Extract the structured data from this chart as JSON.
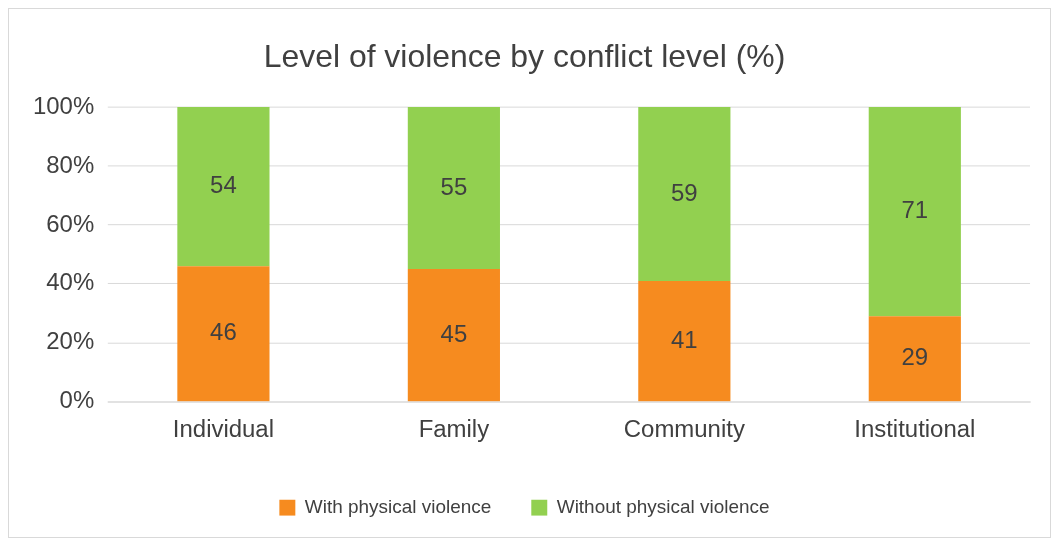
{
  "chart_data": {
    "type": "bar",
    "title": "Level of violence by conflict level (%)",
    "categories": [
      "Individual",
      "Family",
      "Community",
      "Institutional"
    ],
    "series": [
      {
        "name": "With physical violence",
        "color": "#f68b1f",
        "values": [
          46,
          45,
          41,
          29
        ]
      },
      {
        "name": "Without physical violence",
        "color": "#92d050",
        "values": [
          54,
          55,
          59,
          71
        ]
      }
    ],
    "stacked": true,
    "ylim": [
      0,
      100
    ],
    "yticks": [
      {
        "value": 0,
        "label": "0%"
      },
      {
        "value": 20,
        "label": "20%"
      },
      {
        "value": 40,
        "label": "40%"
      },
      {
        "value": 60,
        "label": "60%"
      },
      {
        "value": 80,
        "label": "80%"
      },
      {
        "value": 100,
        "label": "100%"
      }
    ],
    "grid": "y",
    "legend": "bottom",
    "data_labels": true
  }
}
